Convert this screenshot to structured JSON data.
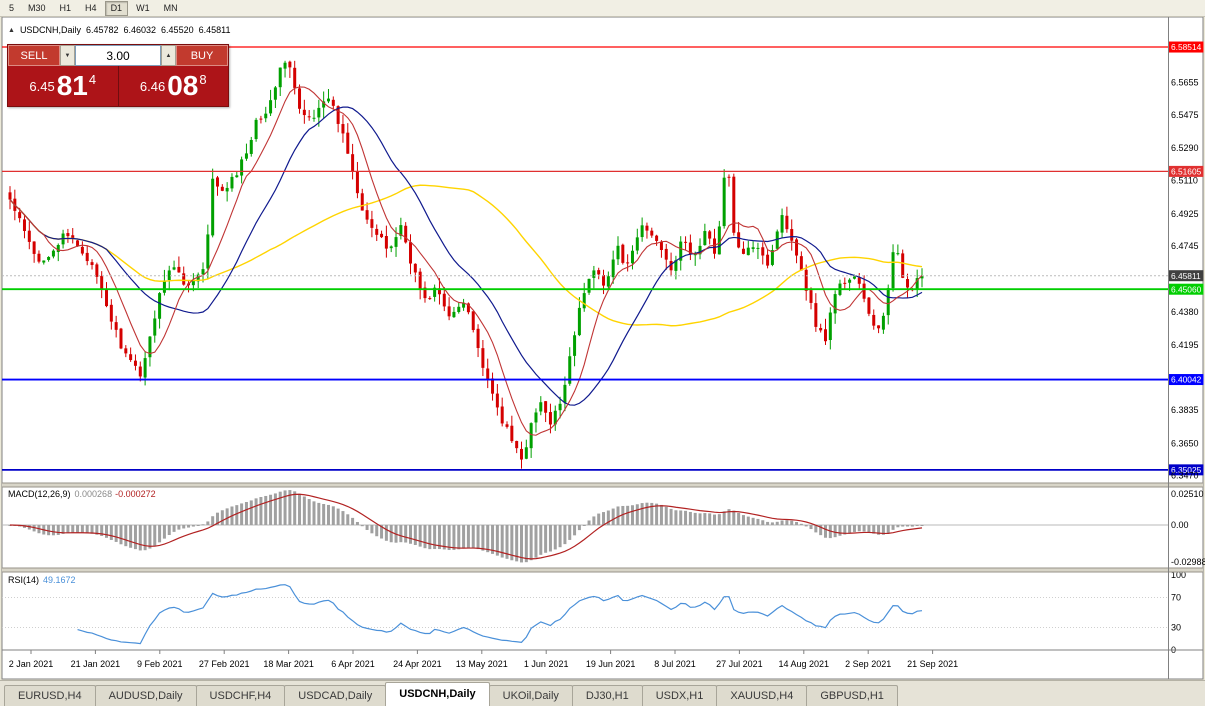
{
  "toolbar": {
    "periods": [
      "5",
      "M30",
      "H1",
      "H4",
      "D1",
      "W1",
      "MN"
    ],
    "active_period": "D1"
  },
  "header": {
    "symbol": "USDCNH,Daily",
    "open": "6.45782",
    "high": "6.46032",
    "low": "6.45520",
    "close": "6.45811"
  },
  "trade_panel": {
    "sell_label": "SELL",
    "buy_label": "BUY",
    "volume": "3.00",
    "decrement_icon": "▼",
    "increment_icon": "▲",
    "sell_price": {
      "prefix": "6.45",
      "big": "81",
      "sup": "4"
    },
    "buy_price": {
      "prefix": "6.46",
      "big": "08",
      "sup": "8"
    }
  },
  "chart_data": {
    "type": "candlestick",
    "symbol": "USDCNH",
    "timeframe": "Daily",
    "colors": {
      "bull": "#00a000",
      "bear": "#d40000",
      "ma_fast": "#c03535",
      "ma_mid": "#101a8e",
      "ma_slow": "#ffd400",
      "macd_hist": "#a0a0a0",
      "macd_signal": "#b22222",
      "rsi_line": "#4a90d9"
    },
    "x_labels": [
      "2 Jan 2021",
      "21 Jan 2021",
      "9 Feb 2021",
      "27 Feb 2021",
      "18 Mar 2021",
      "6 Apr 2021",
      "24 Apr 2021",
      "13 May 2021",
      "1 Jun 2021",
      "19 Jun 2021",
      "8 Jul 2021",
      "27 Jul 2021",
      "14 Aug 2021",
      "2 Sep 2021",
      "21 Sep 2021"
    ],
    "y_axis": {
      "top_price": 6.5946,
      "bottom_price": 6.3435,
      "ticks": [
        "6.5655",
        "6.5475",
        "6.5290",
        "6.5110",
        "6.4925",
        "6.4745",
        "6.4380",
        "6.4195",
        "6.3835",
        "6.3650",
        "6.3470"
      ]
    },
    "levels": [
      {
        "price": 6.58514,
        "label": "6.58514",
        "color": "#ff0000",
        "width": 1.3
      },
      {
        "price": 6.51605,
        "label": "6.51605",
        "color": "#e03030",
        "width": 1.3
      },
      {
        "price": 6.4506,
        "label": "6.45060",
        "color": "#00ce00",
        "width": 1.8
      },
      {
        "price": 6.40042,
        "label": "6.40042",
        "color": "#0000ff",
        "width": 1.8
      },
      {
        "price": 6.35025,
        "label": "6.35025",
        "color": "#0000c8",
        "width": 1.8
      }
    ],
    "current": {
      "price": 6.45811,
      "label": "6.45811",
      "badge_color": "#3f3f3f"
    },
    "candles": {
      "count": 190,
      "keypoints": [
        [
          0.0,
          6.5
        ],
        [
          0.015,
          6.483
        ],
        [
          0.03,
          6.465
        ],
        [
          0.045,
          6.472
        ],
        [
          0.06,
          6.48
        ],
        [
          0.071,
          6.477
        ],
        [
          0.085,
          6.468
        ],
        [
          0.1,
          6.45
        ],
        [
          0.115,
          6.428
        ],
        [
          0.13,
          6.41
        ],
        [
          0.143,
          6.404
        ],
        [
          0.152,
          6.42
        ],
        [
          0.165,
          6.452
        ],
        [
          0.18,
          6.464
        ],
        [
          0.195,
          6.452
        ],
        [
          0.214,
          6.462
        ],
        [
          0.223,
          6.515
        ],
        [
          0.232,
          6.503
        ],
        [
          0.245,
          6.512
        ],
        [
          0.258,
          6.525
        ],
        [
          0.27,
          6.545
        ],
        [
          0.285,
          6.552
        ],
        [
          0.298,
          6.578
        ],
        [
          0.308,
          6.572
        ],
        [
          0.318,
          6.548
        ],
        [
          0.33,
          6.545
        ],
        [
          0.345,
          6.558
        ],
        [
          0.357,
          6.548
        ],
        [
          0.37,
          6.528
        ],
        [
          0.385,
          6.498
        ],
        [
          0.4,
          6.482
        ],
        [
          0.415,
          6.472
        ],
        [
          0.429,
          6.486
        ],
        [
          0.442,
          6.462
        ],
        [
          0.455,
          6.444
        ],
        [
          0.468,
          6.452
        ],
        [
          0.48,
          6.434
        ],
        [
          0.5,
          6.446
        ],
        [
          0.512,
          6.42
        ],
        [
          0.525,
          6.396
        ],
        [
          0.538,
          6.38
        ],
        [
          0.55,
          6.366
        ],
        [
          0.562,
          6.357
        ],
        [
          0.571,
          6.374
        ],
        [
          0.582,
          6.388
        ],
        [
          0.592,
          6.374
        ],
        [
          0.605,
          6.39
        ],
        [
          0.618,
          6.425
        ],
        [
          0.63,
          6.45
        ],
        [
          0.643,
          6.464
        ],
        [
          0.653,
          6.452
        ],
        [
          0.665,
          6.474
        ],
        [
          0.678,
          6.462
        ],
        [
          0.692,
          6.486
        ],
        [
          0.705,
          6.48
        ],
        [
          0.714,
          6.474
        ],
        [
          0.726,
          6.462
        ],
        [
          0.738,
          6.478
        ],
        [
          0.75,
          6.468
        ],
        [
          0.762,
          6.482
        ],
        [
          0.774,
          6.47
        ],
        [
          0.786,
          6.526
        ],
        [
          0.793,
          6.482
        ],
        [
          0.805,
          6.468
        ],
        [
          0.818,
          6.478
        ],
        [
          0.832,
          6.464
        ],
        [
          0.845,
          6.492
        ],
        [
          0.857,
          6.48
        ],
        [
          0.87,
          6.458
        ],
        [
          0.882,
          6.434
        ],
        [
          0.893,
          6.421
        ],
        [
          0.905,
          6.45
        ],
        [
          0.918,
          6.456
        ],
        [
          0.929,
          6.458
        ],
        [
          0.94,
          6.438
        ],
        [
          0.95,
          6.426
        ],
        [
          0.96,
          6.44
        ],
        [
          0.97,
          6.476
        ],
        [
          0.98,
          6.455
        ],
        [
          0.99,
          6.452
        ],
        [
          1.0,
          6.458
        ]
      ]
    },
    "moving_averages": [
      {
        "period": 8,
        "color_key": "ma_fast"
      },
      {
        "period": 21,
        "color_key": "ma_mid"
      },
      {
        "period": 55,
        "color_key": "ma_slow"
      }
    ],
    "macd": {
      "label": "MACD(12,26,9)",
      "value_hist": "0.000268",
      "value_signal": "-0.000272",
      "params": [
        12,
        26,
        9
      ],
      "axis": [
        "0.02510",
        "0.00",
        "-0.02988"
      ]
    },
    "rsi": {
      "label": "RSI(14)",
      "value": "49.1672",
      "period": 14,
      "axis": [
        "100",
        "70",
        "30",
        "0"
      ]
    }
  },
  "tabs": [
    {
      "label": "EURUSD,H4",
      "active": false
    },
    {
      "label": "AUDUSD,Daily",
      "active": false
    },
    {
      "label": "USDCHF,H4",
      "active": false
    },
    {
      "label": "USDCAD,Daily",
      "active": false
    },
    {
      "label": "USDCNH,Daily",
      "active": true
    },
    {
      "label": "UKOil,Daily",
      "active": false
    },
    {
      "label": "DJ30,H1",
      "active": false
    },
    {
      "label": "USDX,H1",
      "active": false
    },
    {
      "label": "XAUUSD,H4",
      "active": false
    },
    {
      "label": "GBPUSD,H1",
      "active": false
    }
  ]
}
